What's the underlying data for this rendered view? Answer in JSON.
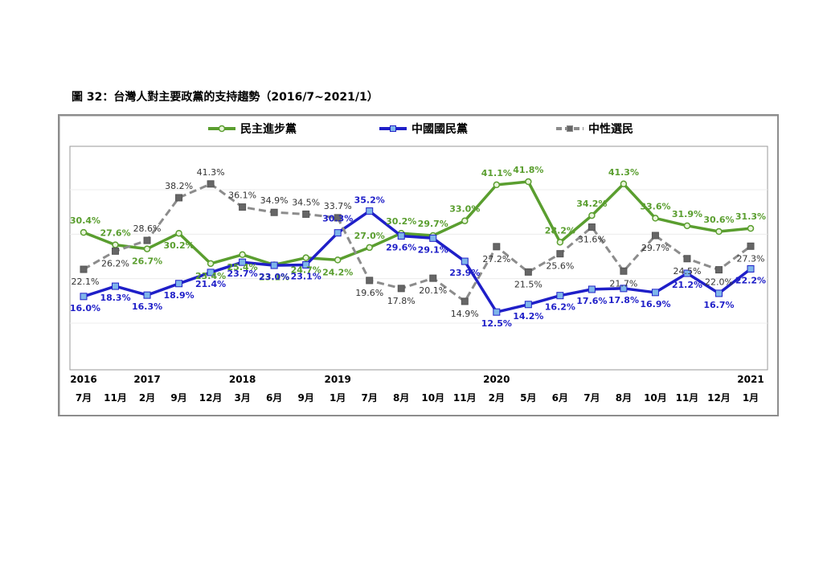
{
  "page": {
    "title": "圖 32：台灣人對主要政黨的支持趨勢（2016/7~2021/1）"
  },
  "chart_data": {
    "type": "line",
    "title": "圖 32：台灣人對主要政黨的支持趨勢（2016/7~2021/1）",
    "xlabel": "",
    "ylabel": "",
    "ylim": [
      0,
      55
    ],
    "grid": true,
    "legend_position": "top",
    "years": [
      "2016",
      "",
      "2017",
      "",
      "",
      "2018",
      "",
      "",
      "2019",
      "",
      "",
      "",
      "",
      "2020",
      "",
      "",
      "",
      "",
      "",
      "",
      "",
      "2021"
    ],
    "categories": [
      "7月",
      "11月",
      "2月",
      "9月",
      "12月",
      "3月",
      "6月",
      "9月",
      "1月",
      "7月",
      "8月",
      "10月",
      "11月",
      "2月",
      "5月",
      "6月",
      "7月",
      "8月",
      "10月",
      "11月",
      "12月",
      "1月"
    ],
    "series": [
      {
        "name": "民主進步黨",
        "color": "#5a9e2f",
        "dash": "solid",
        "marker": "circle",
        "label_color": "#5a9e2f",
        "values": [
          30.4,
          27.6,
          26.7,
          30.2,
          23.4,
          25.4,
          23.1,
          24.7,
          24.2,
          27.0,
          30.2,
          29.7,
          33.0,
          41.1,
          41.8,
          28.2,
          34.2,
          41.3,
          33.6,
          31.9,
          30.6,
          31.3
        ],
        "labels": [
          "30.4%",
          "27.6%",
          "26.7%",
          "30.2%",
          "23.4%",
          "25.4%",
          "23.1%",
          "24.7%",
          "24.2%",
          "27.0%",
          "30.2%",
          "29.7%",
          "33.0%",
          "41.1%",
          "41.8%",
          "28.2%",
          "34.2%",
          "41.3%",
          "33.6%",
          "31.9%",
          "30.6%",
          "31.3%"
        ]
      },
      {
        "name": "中國國民黨",
        "color": "#1f1fc8",
        "dash": "solid",
        "marker": "square",
        "label_color": "#1f1fc8",
        "values": [
          16.0,
          18.3,
          16.3,
          18.9,
          21.4,
          23.7,
          23.0,
          23.1,
          30.3,
          35.2,
          29.6,
          29.1,
          23.9,
          12.5,
          14.2,
          16.2,
          17.6,
          17.8,
          16.9,
          21.2,
          16.7,
          22.2
        ],
        "labels": [
          "16.0%",
          "18.3%",
          "16.3%",
          "18.9%",
          "21.4%",
          "23.7%",
          "23.0%",
          "23.1%",
          "30.3%",
          "35.2%",
          "29.6%",
          "29.1%",
          "23.9%",
          "12.5%",
          "14.2%",
          "16.2%",
          "17.6%",
          "17.8%",
          "16.9%",
          "21.2%",
          "16.7%",
          "22.2%"
        ]
      },
      {
        "name": "中性選民",
        "color": "#8c8c8c",
        "dash": "dashed",
        "marker": "square",
        "label_color": "#333333",
        "values": [
          22.1,
          26.2,
          28.6,
          38.2,
          41.3,
          36.1,
          34.9,
          34.5,
          33.7,
          19.6,
          17.8,
          20.1,
          14.9,
          27.2,
          21.5,
          25.6,
          31.6,
          21.7,
          29.7,
          24.5,
          22.0,
          27.3
        ],
        "labels": [
          "22.1%",
          "26.2%",
          "28.6%",
          "38.2%",
          "41.3%",
          "36.1%",
          "34.9%",
          "34.5%",
          "33.7%",
          "19.6%",
          "17.8%",
          "20.1%",
          "14.9%",
          "27.2%",
          "21.5%",
          "25.6%",
          "31.6%",
          "21.7%",
          "29.7%",
          "24.5%",
          "22.0%",
          "27.3%"
        ]
      }
    ]
  }
}
